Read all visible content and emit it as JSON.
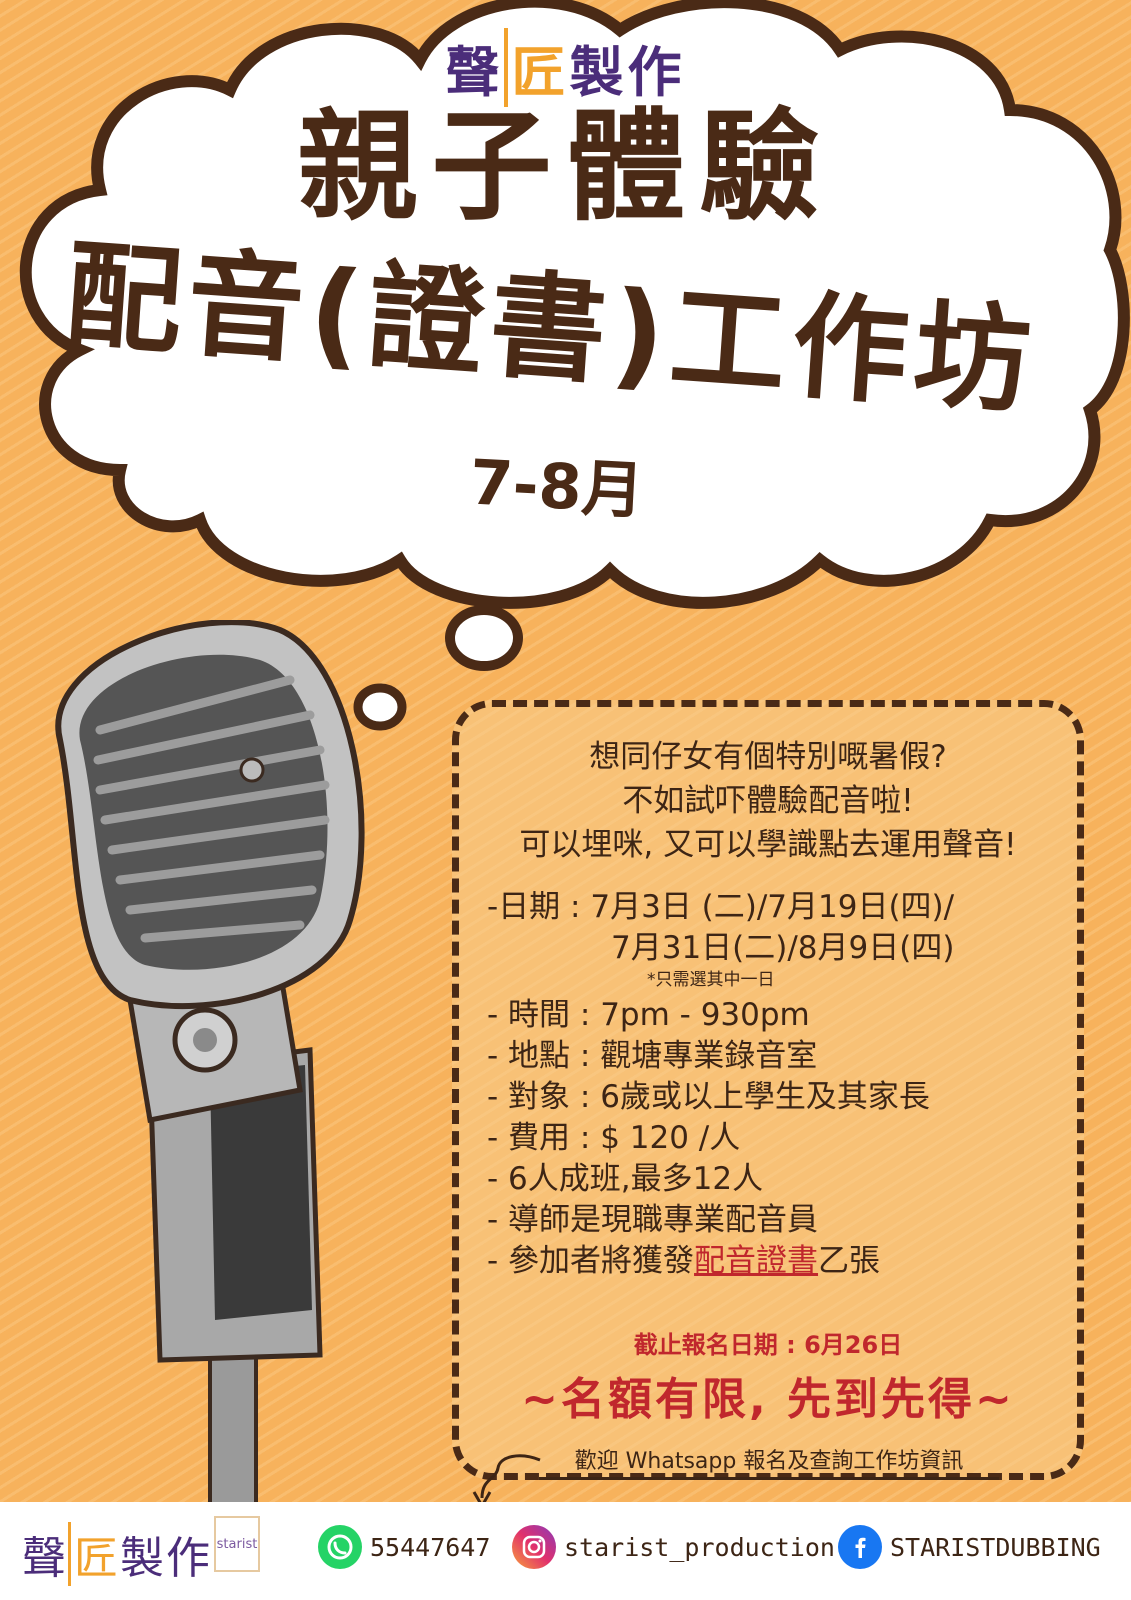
{
  "brand": {
    "part1": "聲",
    "part2": "匠",
    "part3": "製作"
  },
  "title": {
    "line1": "親子體驗",
    "line2": "配音(證書)工作坊",
    "months": "7-8月"
  },
  "intro": {
    "line1": "想同仔女有個特別嘅暑假?",
    "line2": "不如試吓體驗配音啦!",
    "line3": "可以埋咪, 又可以學識點去運用聲音!"
  },
  "details": {
    "date_label": "-日期 :",
    "date_line1": "7月3日 (二)/7月19日(四)/",
    "date_line2": "7月31日(二)/8月9日(四)",
    "date_note": "*只需選其中一日",
    "time_label": "- 時間 :",
    "time_value": "7pm - 930pm",
    "venue_label": "- 地點 :",
    "venue_value": "觀塘專業錄音室",
    "target_label": "- 對象 :",
    "target_value": "6歲或以上學生及其家長",
    "fee_label": "- 費用 :",
    "fee_value": "$ 120 /人",
    "class_size": "- 6人成班,最多12人",
    "tutor": "- 導師是現職專業配音員",
    "cert_prefix": "- 參加者將獲發",
    "cert_highlight": "配音證書",
    "cert_suffix": "乙張"
  },
  "deadline": "截止報名日期 : 6月26日",
  "limited": "~名額有限, 先到先得~",
  "whatsapp_note": "歡迎 Whatsapp 報名及查詢工作坊資訊",
  "footer": {
    "brand1": "聲",
    "brand2": "匠",
    "brand3": "製作",
    "logo_text": "starist",
    "whatsapp": "55447647",
    "instagram": "starist_production",
    "facebook": "STARISTDUBBING"
  },
  "icons": {
    "whatsapp": "whatsapp-icon",
    "instagram": "instagram-icon",
    "facebook": "facebook-icon",
    "microphone": "microphone-illustration"
  },
  "colors": {
    "background": "#f7b25c",
    "title": "#4a2a16",
    "brand_purple": "#4b2d7a",
    "brand_orange": "#f2a22c",
    "accent_red": "#c0272d"
  }
}
